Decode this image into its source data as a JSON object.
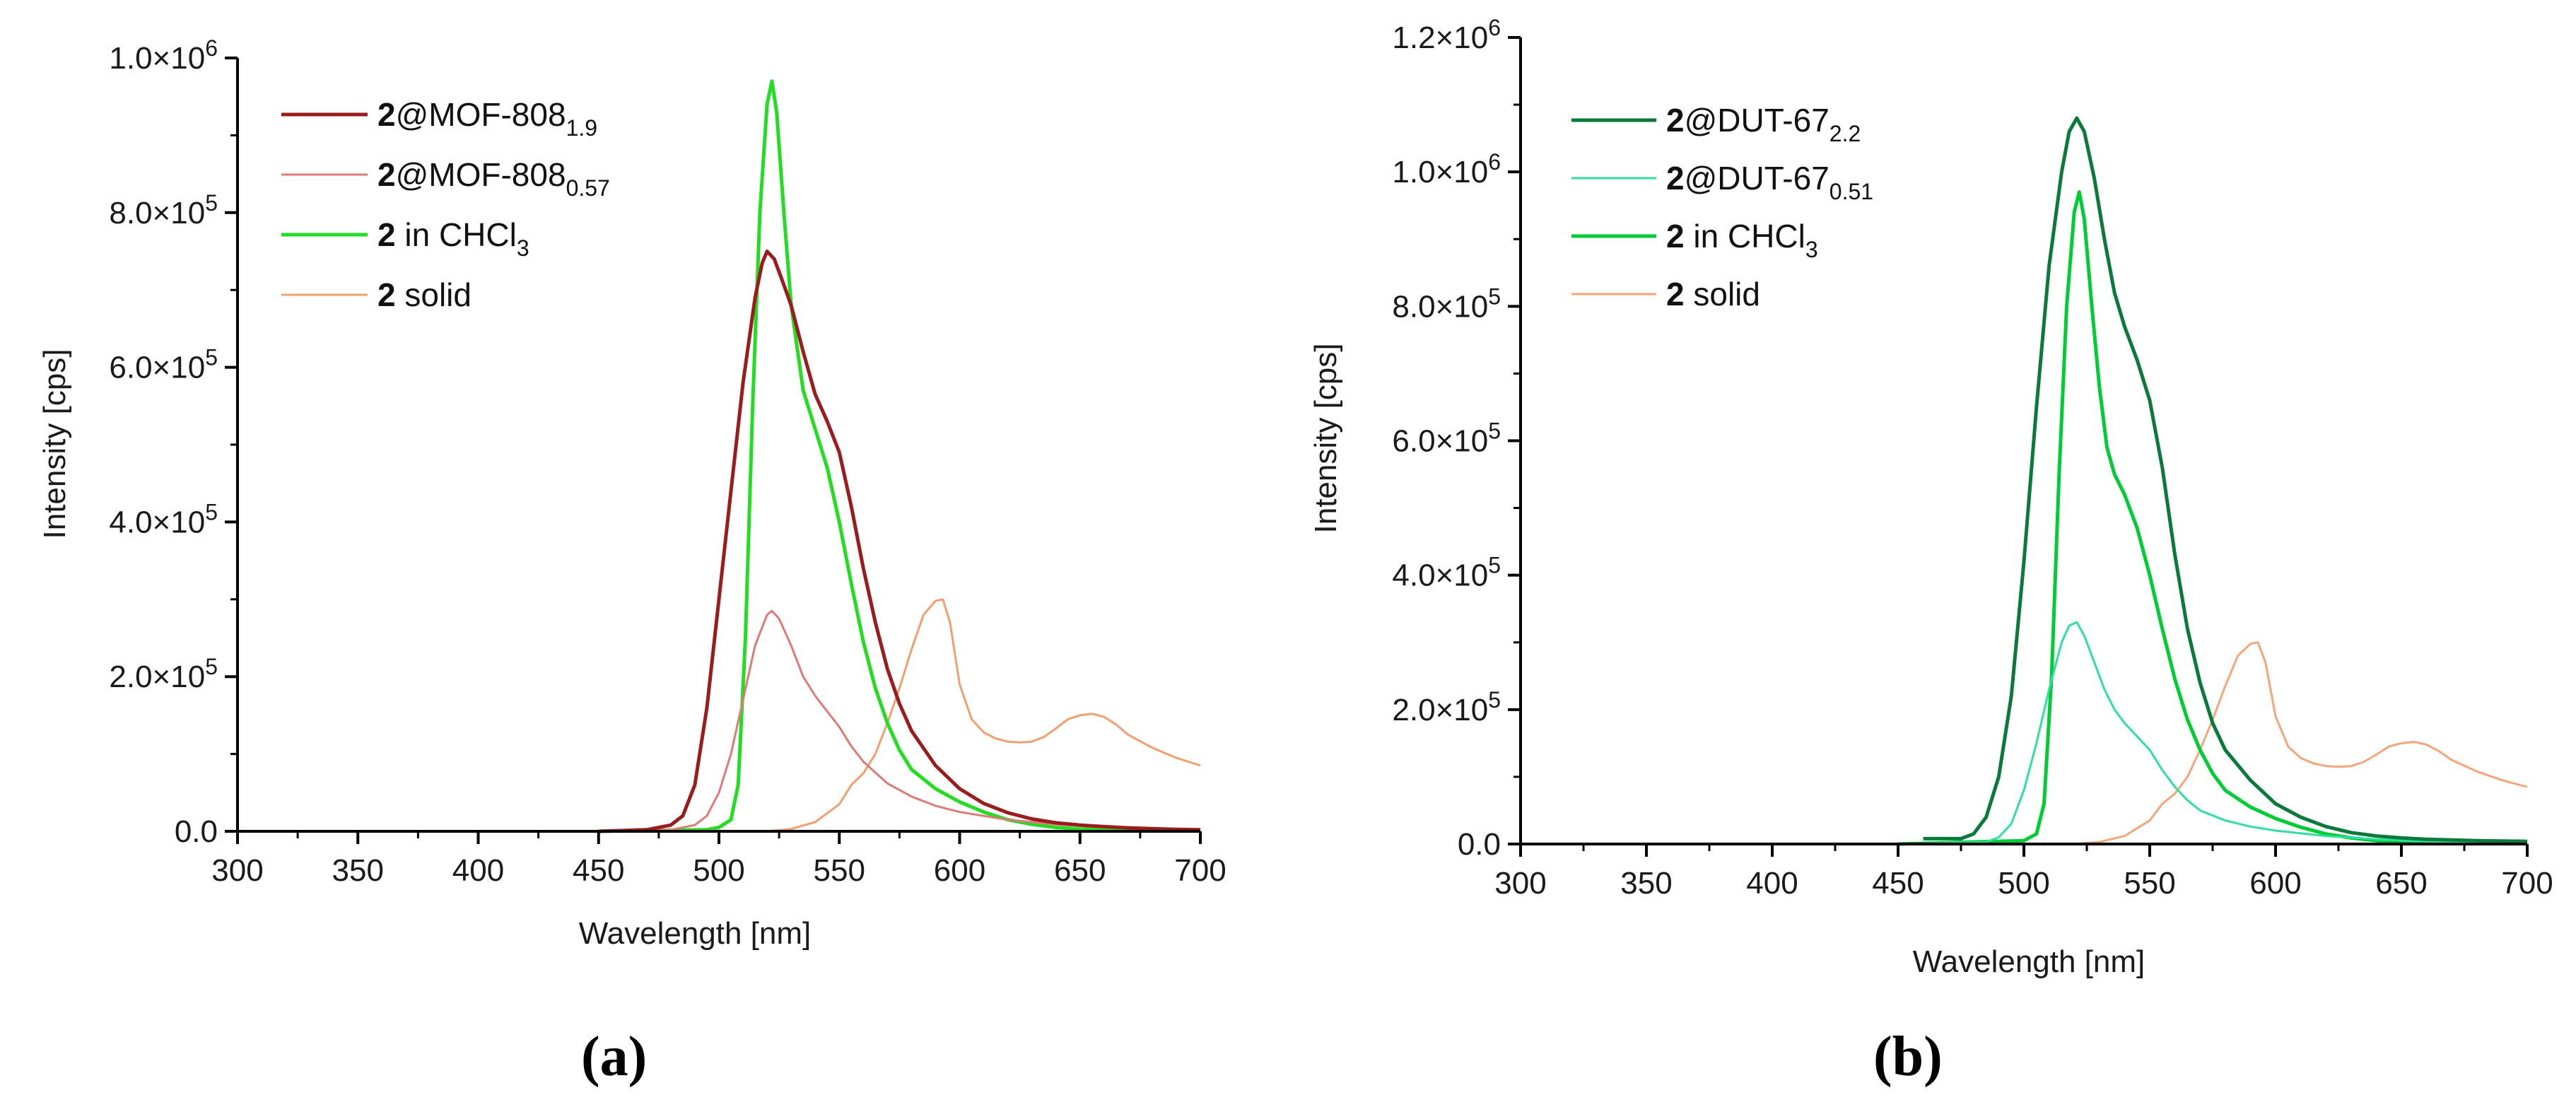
{
  "figure": {
    "panel_labels": [
      "(a)",
      "(b)"
    ]
  },
  "chart_data": [
    {
      "panel": "a",
      "type": "line",
      "title": "",
      "xlabel": "Wavelength [nm]",
      "ylabel": "Intensity [cps]",
      "xlim": [
        300,
        700
      ],
      "ylim": [
        0,
        1000000
      ],
      "xticks": [
        300,
        350,
        400,
        450,
        500,
        550,
        600,
        650,
        700
      ],
      "yticks": [
        0,
        200000,
        400000,
        600000,
        800000,
        1000000
      ],
      "ytick_labels": [
        "0.0",
        "2.0×10⁵",
        "4.0×10⁵",
        "6.0×10⁵",
        "8.0×10⁵",
        "1.0×10⁶"
      ],
      "grid": false,
      "legend_position": "upper left",
      "series": [
        {
          "name": "2@MOF-808_1.9",
          "legend_bold": "2",
          "legend_main": "@MOF-808",
          "legend_sub": "1.9",
          "color": "#9b1c1c",
          "width": 5,
          "x": [
            450,
            470,
            480,
            485,
            490,
            495,
            500,
            505,
            510,
            515,
            518,
            520,
            523,
            526,
            530,
            535,
            540,
            545,
            550,
            555,
            560,
            565,
            570,
            575,
            580,
            590,
            600,
            610,
            620,
            630,
            640,
            650,
            660,
            670,
            680,
            690,
            700
          ],
          "y": [
            0,
            2000,
            8000,
            20000,
            60000,
            160000,
            300000,
            440000,
            580000,
            690000,
            735000,
            750000,
            740000,
            715000,
            680000,
            620000,
            565000,
            530000,
            490000,
            420000,
            340000,
            270000,
            210000,
            165000,
            130000,
            85000,
            55000,
            36000,
            24000,
            16000,
            11000,
            8000,
            6000,
            4500,
            3500,
            2500,
            2000
          ]
        },
        {
          "name": "2@MOF-808_0.57",
          "legend_bold": "2",
          "legend_main": "@MOF-808",
          "legend_sub": "0.57",
          "color": "#e07a78",
          "width": 3,
          "x": [
            450,
            480,
            490,
            495,
            500,
            505,
            510,
            515,
            520,
            522,
            525,
            530,
            535,
            540,
            545,
            550,
            555,
            560,
            570,
            580,
            590,
            600,
            620,
            640,
            660,
            680,
            700
          ],
          "y": [
            0,
            2000,
            8000,
            20000,
            50000,
            100000,
            170000,
            240000,
            280000,
            285000,
            275000,
            240000,
            200000,
            175000,
            155000,
            135000,
            110000,
            90000,
            62000,
            45000,
            33000,
            25000,
            15000,
            9000,
            5000,
            3000,
            2000
          ]
        },
        {
          "name": "2 in CHCl3",
          "legend_bold": "2",
          "legend_main": " in CHCl",
          "legend_sub": "3",
          "color": "#22dd22",
          "width": 5,
          "x": [
            450,
            495,
            500,
            505,
            508,
            511,
            514,
            517,
            520,
            522,
            524,
            527,
            530,
            535,
            540,
            545,
            550,
            555,
            560,
            565,
            570,
            575,
            580,
            590,
            600,
            610,
            620,
            630,
            640,
            650,
            660,
            680,
            700
          ],
          "y": [
            0,
            2000,
            5000,
            15000,
            60000,
            250000,
            550000,
            800000,
            940000,
            970000,
            930000,
            800000,
            680000,
            570000,
            520000,
            470000,
            400000,
            320000,
            245000,
            185000,
            140000,
            105000,
            80000,
            55000,
            38000,
            25000,
            15000,
            9000,
            5000,
            3000,
            2000,
            1000,
            500
          ]
        },
        {
          "name": "2 solid",
          "legend_bold": "2",
          "legend_main": " solid",
          "legend_sub": "",
          "color": "#f0a070",
          "width": 3,
          "x": [
            450,
            520,
            530,
            540,
            550,
            555,
            560,
            565,
            570,
            575,
            580,
            585,
            590,
            593,
            596,
            600,
            605,
            610,
            615,
            620,
            625,
            630,
            635,
            640,
            645,
            650,
            655,
            660,
            665,
            670,
            680,
            690,
            700
          ],
          "y": [
            0,
            0,
            3000,
            12000,
            35000,
            60000,
            75000,
            100000,
            140000,
            185000,
            235000,
            280000,
            298000,
            300000,
            270000,
            190000,
            145000,
            128000,
            120000,
            116000,
            115000,
            116000,
            122000,
            133000,
            145000,
            150000,
            152000,
            148000,
            138000,
            125000,
            108000,
            95000,
            85000
          ]
        }
      ]
    },
    {
      "panel": "b",
      "type": "line",
      "title": "",
      "xlabel": "Wavelength [nm]",
      "ylabel": "Intensity [cps]",
      "xlim": [
        300,
        700
      ],
      "ylim": [
        0,
        1200000
      ],
      "xticks": [
        300,
        350,
        400,
        450,
        500,
        550,
        600,
        650,
        700
      ],
      "yticks": [
        0,
        200000,
        400000,
        600000,
        800000,
        1000000,
        1200000
      ],
      "ytick_labels": [
        "0.0",
        "2.0×10⁵",
        "4.0×10⁵",
        "6.0×10⁵",
        "8.0×10⁵",
        "1.0×10⁶",
        "1.2×10⁶"
      ],
      "grid": false,
      "legend_position": "upper left",
      "series": [
        {
          "name": "2@DUT-67_2.2",
          "legend_bold": "2",
          "legend_main": "@DUT-67",
          "legend_sub": "2.2",
          "color": "#0a7a3a",
          "width": 5,
          "x": [
            460,
            475,
            480,
            485,
            490,
            495,
            500,
            505,
            510,
            515,
            518,
            521,
            524,
            528,
            532,
            536,
            540,
            545,
            550,
            555,
            560,
            565,
            570,
            575,
            580,
            590,
            600,
            610,
            620,
            630,
            640,
            650,
            660,
            680,
            700
          ],
          "y": [
            8000,
            8000,
            15000,
            40000,
            100000,
            220000,
            420000,
            650000,
            860000,
            1000000,
            1060000,
            1080000,
            1060000,
            990000,
            900000,
            820000,
            770000,
            720000,
            660000,
            560000,
            430000,
            320000,
            240000,
            180000,
            140000,
            95000,
            60000,
            40000,
            26000,
            17000,
            12000,
            9000,
            7000,
            5000,
            4000
          ]
        },
        {
          "name": "2@DUT-67_0.51",
          "legend_bold": "2",
          "legend_main": "@DUT-67",
          "legend_sub": "0.51",
          "color": "#2ee0a0",
          "width": 3,
          "x": [
            450,
            485,
            490,
            495,
            500,
            505,
            510,
            515,
            518,
            521,
            524,
            528,
            532,
            536,
            540,
            545,
            550,
            555,
            560,
            565,
            570,
            580,
            590,
            600,
            620,
            640,
            660,
            680,
            700
          ],
          "y": [
            0,
            3000,
            10000,
            30000,
            80000,
            150000,
            230000,
            300000,
            325000,
            330000,
            310000,
            270000,
            230000,
            200000,
            180000,
            160000,
            140000,
            110000,
            85000,
            65000,
            50000,
            35000,
            26000,
            20000,
            12000,
            7000,
            4000,
            2000,
            1000
          ]
        },
        {
          "name": "2 in CHCl3",
          "legend_bold": "2",
          "legend_main": " in CHCl",
          "legend_sub": "3",
          "color": "#00cc33",
          "width": 5,
          "x": [
            450,
            500,
            505,
            508,
            511,
            514,
            517,
            520,
            522,
            524,
            527,
            530,
            533,
            536,
            540,
            545,
            550,
            555,
            560,
            565,
            570,
            575,
            580,
            590,
            600,
            610,
            620,
            630,
            640,
            650,
            660,
            680,
            700
          ],
          "y": [
            0,
            5000,
            15000,
            60000,
            250000,
            550000,
            800000,
            940000,
            970000,
            930000,
            800000,
            680000,
            590000,
            550000,
            520000,
            470000,
            400000,
            320000,
            245000,
            185000,
            140000,
            105000,
            80000,
            55000,
            38000,
            25000,
            15000,
            9000,
            5000,
            3000,
            2000,
            1000,
            500
          ]
        },
        {
          "name": "2 solid",
          "legend_bold": "2",
          "legend_main": " solid",
          "legend_sub": "",
          "color": "#f4a57a",
          "width": 3,
          "x": [
            450,
            520,
            530,
            540,
            550,
            555,
            560,
            565,
            570,
            575,
            580,
            585,
            590,
            593,
            596,
            600,
            605,
            610,
            615,
            620,
            625,
            630,
            635,
            640,
            645,
            650,
            655,
            660,
            665,
            670,
            680,
            690,
            700
          ],
          "y": [
            0,
            0,
            3000,
            12000,
            35000,
            60000,
            75000,
            100000,
            140000,
            185000,
            235000,
            280000,
            298000,
            300000,
            270000,
            190000,
            145000,
            128000,
            120000,
            116000,
            115000,
            116000,
            122000,
            133000,
            145000,
            150000,
            152000,
            148000,
            138000,
            125000,
            108000,
            95000,
            85000
          ]
        }
      ]
    }
  ]
}
